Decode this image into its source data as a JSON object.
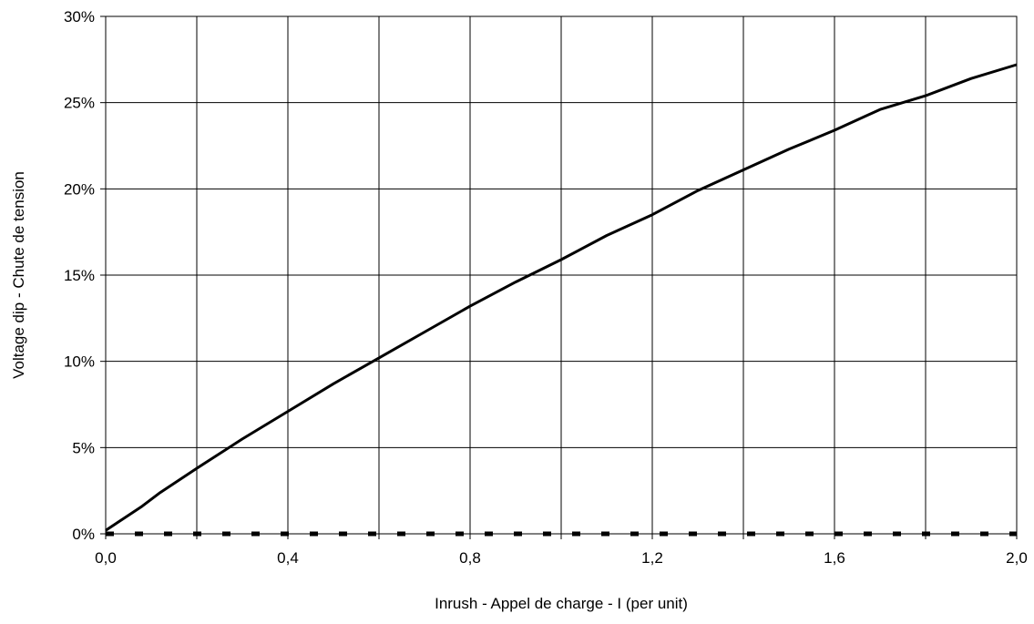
{
  "chart_data": {
    "type": "line",
    "title": "",
    "xlabel": "Inrush - Appel de charge - I (per unit)",
    "ylabel": "Voltage dip - Chute de tension",
    "xlim": [
      0,
      2.0
    ],
    "ylim": [
      0,
      30
    ],
    "x_ticks": [
      "0,0",
      "0,4",
      "0,8",
      "1,2",
      "1,6",
      "2,0"
    ],
    "y_ticks": [
      "0%",
      "5%",
      "10%",
      "15%",
      "20%",
      "25%",
      "30%"
    ],
    "grid": true,
    "legend": "none",
    "series": [
      {
        "style": "solid",
        "color": "#000000",
        "x": [
          0.0,
          0.04,
          0.08,
          0.12,
          0.2,
          0.3,
          0.4,
          0.5,
          0.6,
          0.7,
          0.8,
          0.9,
          1.0,
          1.1,
          1.2,
          1.3,
          1.4,
          1.5,
          1.6,
          1.7,
          1.8,
          1.9,
          2.0
        ],
        "values": [
          0.2,
          0.9,
          1.6,
          2.4,
          3.8,
          5.5,
          7.1,
          8.7,
          10.2,
          11.7,
          13.2,
          14.6,
          15.9,
          17.3,
          18.5,
          19.9,
          21.1,
          22.3,
          23.4,
          24.6,
          25.4,
          26.4,
          27.2
        ]
      },
      {
        "style": "dashed",
        "color": "#000000",
        "x": [
          0.0,
          2.0
        ],
        "values": [
          0.0,
          0.0
        ]
      }
    ]
  }
}
